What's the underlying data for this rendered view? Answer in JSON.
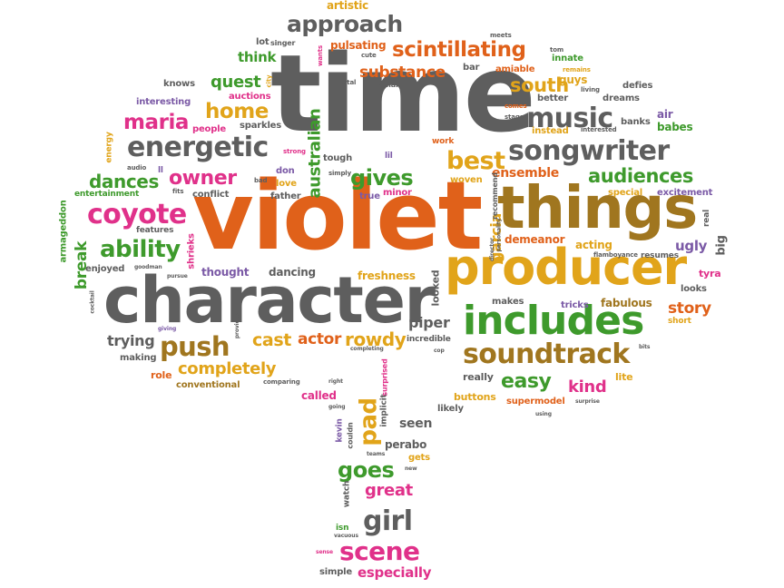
{
  "palette": {
    "orange": "#e0611a",
    "gray": "#5e5e5e",
    "green": "#3e9a2c",
    "pink": "#e0318a",
    "purple": "#7b5aa6",
    "gold": "#e1a41a",
    "brown": "#a0761f"
  },
  "words": [
    {
      "text": "time",
      "color": "gray"
    },
    {
      "text": "violet",
      "color": "orange"
    },
    {
      "text": "character",
      "color": "gray"
    },
    {
      "text": "things",
      "color": "brown"
    },
    {
      "text": "producer",
      "color": "gold"
    },
    {
      "text": "includes",
      "color": "green"
    },
    {
      "text": "soundtrack",
      "color": "brown"
    },
    {
      "text": "songwriter",
      "color": "gray"
    },
    {
      "text": "energetic",
      "color": "gray"
    },
    {
      "text": "scintillating",
      "color": "orange"
    },
    {
      "text": "approach",
      "color": "gray"
    },
    {
      "text": "music",
      "color": "gray"
    },
    {
      "text": "coyote",
      "color": "pink"
    },
    {
      "text": "audiences",
      "color": "green"
    },
    {
      "text": "ability",
      "color": "green"
    },
    {
      "text": "push",
      "color": "brown"
    },
    {
      "text": "maria",
      "color": "pink"
    },
    {
      "text": "home",
      "color": "gold"
    },
    {
      "text": "owner",
      "color": "pink"
    },
    {
      "text": "dances",
      "color": "green"
    },
    {
      "text": "gives",
      "color": "green"
    },
    {
      "text": "best",
      "color": "gold"
    },
    {
      "text": "south",
      "color": "gold"
    },
    {
      "text": "substance",
      "color": "orange"
    },
    {
      "text": "quest",
      "color": "green"
    },
    {
      "text": "think",
      "color": "green"
    },
    {
      "text": "completely",
      "color": "gold"
    },
    {
      "text": "easy",
      "color": "green"
    },
    {
      "text": "kind",
      "color": "pink"
    },
    {
      "text": "story",
      "color": "orange"
    },
    {
      "text": "girl",
      "color": "gray"
    },
    {
      "text": "goes",
      "color": "green"
    },
    {
      "text": "great",
      "color": "pink"
    },
    {
      "text": "scene",
      "color": "pink"
    },
    {
      "text": "especially",
      "color": "pink"
    },
    {
      "text": "pad",
      "color": "gold"
    },
    {
      "text": "rowdy",
      "color": "gold"
    },
    {
      "text": "cast",
      "color": "gold"
    },
    {
      "text": "actor",
      "color": "orange"
    },
    {
      "text": "trying",
      "color": "gray"
    },
    {
      "text": "ensemble",
      "color": "orange"
    },
    {
      "text": "australian",
      "color": "green"
    },
    {
      "text": "garcia",
      "color": "gold"
    },
    {
      "text": "break",
      "color": "green"
    },
    {
      "text": "artistic",
      "color": "gold"
    },
    {
      "text": "pulsating",
      "color": "orange"
    },
    {
      "text": "singer",
      "color": "gray"
    },
    {
      "text": "lot",
      "color": "gray"
    },
    {
      "text": "knows",
      "color": "gray"
    },
    {
      "text": "auctions",
      "color": "pink"
    },
    {
      "text": "interesting",
      "color": "purple"
    },
    {
      "text": "people",
      "color": "pink"
    },
    {
      "text": "sparkles",
      "color": "gray"
    },
    {
      "text": "energy",
      "color": "gold"
    },
    {
      "text": "audio",
      "color": "gray"
    },
    {
      "text": "entertainment",
      "color": "green"
    },
    {
      "text": "conflict",
      "color": "gray"
    },
    {
      "text": "features",
      "color": "gray"
    },
    {
      "text": "fits",
      "color": "gray"
    },
    {
      "text": "ll",
      "color": "purple"
    },
    {
      "text": "bad",
      "color": "gray"
    },
    {
      "text": "don",
      "color": "purple"
    },
    {
      "text": "love",
      "color": "gold"
    },
    {
      "text": "father",
      "color": "gray"
    },
    {
      "text": "strong",
      "color": "pink"
    },
    {
      "text": "simply",
      "color": "gray"
    },
    {
      "text": "tough",
      "color": "gray"
    },
    {
      "text": "lil",
      "color": "purple"
    },
    {
      "text": "true",
      "color": "purple"
    },
    {
      "text": "minor",
      "color": "pink"
    },
    {
      "text": "work",
      "color": "orange"
    },
    {
      "text": "woven",
      "color": "gold"
    },
    {
      "text": "digital",
      "color": "gray"
    },
    {
      "text": "small",
      "color": "gray"
    },
    {
      "text": "cute",
      "color": "gray"
    },
    {
      "text": "wants",
      "color": "pink"
    },
    {
      "text": "city",
      "color": "gold"
    },
    {
      "text": "bar",
      "color": "gray"
    },
    {
      "text": "amiable",
      "color": "orange"
    },
    {
      "text": "innate",
      "color": "green"
    },
    {
      "text": "meets",
      "color": "gray"
    },
    {
      "text": "tom",
      "color": "gray"
    },
    {
      "text": "remains",
      "color": "gold"
    },
    {
      "text": "guys",
      "color": "gold"
    },
    {
      "text": "living",
      "color": "gray"
    },
    {
      "text": "dreams",
      "color": "gray"
    },
    {
      "text": "defies",
      "color": "gray"
    },
    {
      "text": "banks",
      "color": "gray"
    },
    {
      "text": "air",
      "color": "purple"
    },
    {
      "text": "babes",
      "color": "green"
    },
    {
      "text": "better",
      "color": "gray"
    },
    {
      "text": "interested",
      "color": "gray"
    },
    {
      "text": "instead",
      "color": "gold"
    },
    {
      "text": "stage",
      "color": "gray"
    },
    {
      "text": "comes",
      "color": "orange"
    },
    {
      "text": "special",
      "color": "gold"
    },
    {
      "text": "excitement",
      "color": "purple"
    },
    {
      "text": "recommend",
      "color": "gray"
    },
    {
      "text": "personality",
      "color": "gray"
    },
    {
      "text": "real",
      "color": "gray"
    },
    {
      "text": "big",
      "color": "gray"
    },
    {
      "text": "director",
      "color": "gray"
    },
    {
      "text": "demeanor",
      "color": "orange"
    },
    {
      "text": "acting",
      "color": "gold"
    },
    {
      "text": "flamboyance",
      "color": "gray"
    },
    {
      "text": "resumes",
      "color": "gray"
    },
    {
      "text": "ugly",
      "color": "purple"
    },
    {
      "text": "tyra",
      "color": "pink"
    },
    {
      "text": "fabulous",
      "color": "brown"
    },
    {
      "text": "looks",
      "color": "gray"
    },
    {
      "text": "tricks",
      "color": "purple"
    },
    {
      "text": "makes",
      "color": "gray"
    },
    {
      "text": "short",
      "color": "gold"
    },
    {
      "text": "bits",
      "color": "gray"
    },
    {
      "text": "lite",
      "color": "gold"
    },
    {
      "text": "really",
      "color": "gray"
    },
    {
      "text": "buttons",
      "color": "gold"
    },
    {
      "text": "supermodel",
      "color": "orange"
    },
    {
      "text": "surprise",
      "color": "gray"
    },
    {
      "text": "using",
      "color": "gray"
    },
    {
      "text": "likely",
      "color": "gray"
    },
    {
      "text": "surprised",
      "color": "pink"
    },
    {
      "text": "implicit",
      "color": "gray"
    },
    {
      "text": "seen",
      "color": "gray"
    },
    {
      "text": "perabo",
      "color": "gray"
    },
    {
      "text": "gets",
      "color": "gold"
    },
    {
      "text": "new",
      "color": "gray"
    },
    {
      "text": "teams",
      "color": "gray"
    },
    {
      "text": "watch",
      "color": "gray"
    },
    {
      "text": "isn",
      "color": "green"
    },
    {
      "text": "vacuous",
      "color": "gray"
    },
    {
      "text": "sense",
      "color": "pink"
    },
    {
      "text": "simple",
      "color": "gray"
    },
    {
      "text": "kevin",
      "color": "purple"
    },
    {
      "text": "couldn",
      "color": "gray"
    },
    {
      "text": "going",
      "color": "gray"
    },
    {
      "text": "right",
      "color": "gray"
    },
    {
      "text": "called",
      "color": "pink"
    },
    {
      "text": "comparing",
      "color": "gray"
    },
    {
      "text": "cop",
      "color": "gray"
    },
    {
      "text": "conventional",
      "color": "brown"
    },
    {
      "text": "role",
      "color": "orange"
    },
    {
      "text": "making",
      "color": "gray"
    },
    {
      "text": "giving",
      "color": "purple"
    },
    {
      "text": "provides",
      "color": "gray"
    },
    {
      "text": "enjoyed",
      "color": "gray"
    },
    {
      "text": "goodman",
      "color": "gray"
    },
    {
      "text": "pursue",
      "color": "gray"
    },
    {
      "text": "shrieks",
      "color": "pink"
    },
    {
      "text": "thought",
      "color": "purple"
    },
    {
      "text": "dancing",
      "color": "gray"
    },
    {
      "text": "freshness",
      "color": "gold"
    },
    {
      "text": "looked",
      "color": "gray"
    },
    {
      "text": "incredible",
      "color": "gray"
    },
    {
      "text": "completing",
      "color": "gray"
    },
    {
      "text": "piper",
      "color": "gray"
    },
    {
      "text": "armageddon",
      "color": "green"
    },
    {
      "text": "cocktail",
      "color": "gray"
    }
  ]
}
